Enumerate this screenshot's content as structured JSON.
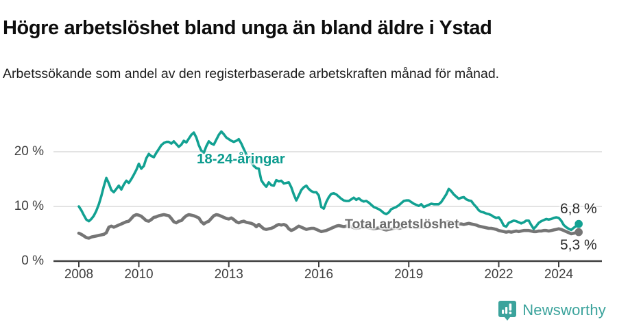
{
  "header": {
    "title": "Högre arbetslöshet bland unga än bland äldre i Ystad",
    "subtitle": "Arbetssökande som andel av den registerbaserade arbetskraften månad för månad."
  },
  "chart_data": {
    "type": "line",
    "title": "Högre arbetslöshet bland unga än bland äldre i Ystad",
    "subtitle": "Arbetssökande som andel av den registerbaserade arbetskraften månad för månad.",
    "grid": "horizontal",
    "legend_position": "inline-labels-on-lines",
    "frequency": "monthly",
    "start_year": 2008,
    "x_axis": {
      "ticks": [
        "2008",
        "2010",
        "2013",
        "2016",
        "2019",
        "2022",
        "2024"
      ],
      "tick_years": [
        2008,
        2010,
        2013,
        2016,
        2019,
        2022,
        2024
      ],
      "range_years": [
        2008,
        2024.67
      ]
    },
    "y_axis": {
      "unit": "%",
      "tick_labels": [
        "0 %",
        "10 %",
        "20 %"
      ],
      "tick_values": [
        0,
        10,
        20
      ],
      "ylim": [
        0,
        25
      ]
    },
    "series": [
      {
        "name": "18-24-åringar",
        "color": "#12a192",
        "end_label": "6,8 %",
        "end_value": 6.8,
        "values": [
          10.0,
          9.3,
          8.4,
          7.6,
          7.3,
          7.7,
          8.3,
          9.2,
          10.4,
          11.9,
          13.7,
          15.2,
          14.2,
          13.0,
          12.6,
          13.2,
          13.8,
          13.1,
          14.0,
          14.7,
          14.3,
          15.0,
          15.8,
          16.7,
          17.8,
          16.9,
          17.4,
          18.8,
          19.6,
          19.2,
          19.0,
          19.8,
          20.5,
          21.2,
          21.6,
          21.8,
          21.8,
          21.5,
          21.9,
          21.4,
          20.9,
          21.3,
          22.0,
          21.7,
          22.4,
          23.1,
          23.5,
          22.6,
          21.2,
          20.2,
          19.8,
          21.0,
          21.9,
          21.5,
          21.3,
          22.2,
          23.1,
          23.7,
          23.2,
          22.6,
          22.3,
          22.0,
          21.8,
          22.0,
          22.3,
          21.5,
          20.5,
          19.5,
          18.8,
          18.1,
          17.4,
          17.0,
          16.9,
          14.8,
          14.1,
          13.6,
          14.4,
          13.9,
          13.8,
          14.8,
          14.6,
          14.7,
          14.2,
          14.3,
          14.4,
          13.5,
          12.2,
          11.1,
          12.0,
          13.0,
          13.5,
          13.8,
          13.2,
          12.8,
          12.6,
          12.6,
          12.0,
          9.9,
          9.6,
          10.8,
          11.7,
          12.3,
          12.4,
          12.2,
          11.8,
          11.4,
          11.1,
          11.0,
          11.0,
          11.3,
          11.6,
          11.2,
          11.5,
          11.1,
          10.9,
          11.0,
          10.7,
          10.3,
          9.9,
          9.7,
          9.5,
          9.2,
          8.8,
          8.6,
          8.9,
          9.5,
          9.7,
          9.9,
          10.2,
          10.6,
          11.0,
          11.1,
          11.1,
          10.8,
          10.5,
          10.3,
          10.1,
          10.4,
          9.9,
          10.1,
          10.3,
          10.5,
          10.4,
          10.4,
          10.4,
          10.8,
          11.5,
          12.2,
          13.2,
          12.8,
          12.2,
          11.8,
          11.4,
          11.6,
          11.7,
          11.3,
          11.1,
          11.0,
          10.4,
          9.9,
          9.3,
          9.0,
          8.9,
          8.7,
          8.6,
          8.4,
          8.1,
          7.9,
          8.0,
          7.4,
          6.5,
          6.3,
          7.0,
          7.2,
          7.4,
          7.3,
          7.1,
          6.9,
          7.1,
          7.4,
          7.4,
          6.6,
          5.9,
          6.4,
          7.0,
          7.3,
          7.5,
          7.7,
          7.6,
          7.7,
          7.9,
          8.0,
          7.9,
          7.4,
          6.6,
          6.2,
          5.9,
          5.7,
          6.1,
          6.4,
          6.8
        ]
      },
      {
        "name": "Total arbetslöshet",
        "color": "#757575",
        "end_label": "5,3 %",
        "end_value": 5.3,
        "values": [
          5.1,
          4.9,
          4.6,
          4.3,
          4.2,
          4.4,
          4.5,
          4.6,
          4.7,
          4.8,
          4.9,
          5.2,
          6.2,
          6.4,
          6.2,
          6.4,
          6.6,
          6.8,
          7.0,
          7.2,
          7.3,
          7.8,
          8.3,
          8.5,
          8.4,
          8.2,
          7.8,
          7.4,
          7.3,
          7.6,
          8.0,
          8.1,
          8.3,
          8.4,
          8.5,
          8.4,
          8.3,
          7.8,
          7.2,
          7.0,
          7.3,
          7.4,
          7.9,
          8.3,
          8.5,
          8.4,
          8.3,
          8.1,
          7.9,
          7.2,
          6.8,
          7.1,
          7.3,
          7.8,
          8.3,
          8.5,
          8.4,
          8.2,
          8.0,
          7.8,
          7.7,
          7.9,
          7.6,
          7.2,
          7.0,
          7.2,
          7.3,
          7.1,
          7.0,
          6.9,
          6.7,
          6.3,
          6.7,
          6.3,
          5.9,
          5.8,
          5.9,
          6.0,
          6.2,
          6.5,
          6.7,
          6.6,
          6.7,
          6.5,
          5.9,
          5.6,
          5.8,
          6.1,
          6.4,
          6.2,
          6.0,
          5.8,
          5.9,
          6.0,
          6.0,
          5.8,
          5.6,
          5.4,
          5.5,
          5.6,
          5.8,
          6.0,
          6.2,
          6.4,
          6.5,
          6.4,
          6.3,
          6.4,
          6.5,
          6.3,
          6.1,
          6.0,
          6.1,
          6.2,
          6.3,
          6.2,
          6.1,
          6.0,
          5.9,
          6.0,
          6.1,
          6.0,
          5.8,
          5.7,
          5.8,
          5.9,
          6.0,
          6.1,
          6.0,
          6.1,
          6.2,
          6.3,
          6.4,
          6.3,
          6.2,
          6.1,
          6.2,
          6.3,
          6.2,
          6.3,
          6.4,
          6.5,
          6.4,
          6.5,
          6.6,
          6.7,
          6.9,
          7.1,
          7.2,
          7.1,
          7.0,
          6.9,
          6.8,
          6.8,
          6.7,
          6.8,
          6.9,
          6.8,
          6.7,
          6.6,
          6.4,
          6.3,
          6.2,
          6.1,
          6.0,
          6.0,
          5.9,
          5.8,
          5.6,
          5.5,
          5.4,
          5.3,
          5.4,
          5.3,
          5.4,
          5.5,
          5.4,
          5.5,
          5.6,
          5.6,
          5.6,
          5.5,
          5.4,
          5.4,
          5.5,
          5.5,
          5.6,
          5.6,
          5.5,
          5.6,
          5.7,
          5.8,
          5.9,
          5.8,
          5.6,
          5.4,
          5.2,
          5.0,
          5.1,
          5.2,
          5.3
        ]
      }
    ],
    "colors": {
      "young": "#12a192",
      "total": "#757575",
      "gridline": "#dadada",
      "axis": "#3d3d3d"
    }
  },
  "footer": {
    "brand": "Newsworthy",
    "brand_icon": "newsworthy-speech-bubble-barchart-icon",
    "brand_color": "#3ba39c"
  }
}
